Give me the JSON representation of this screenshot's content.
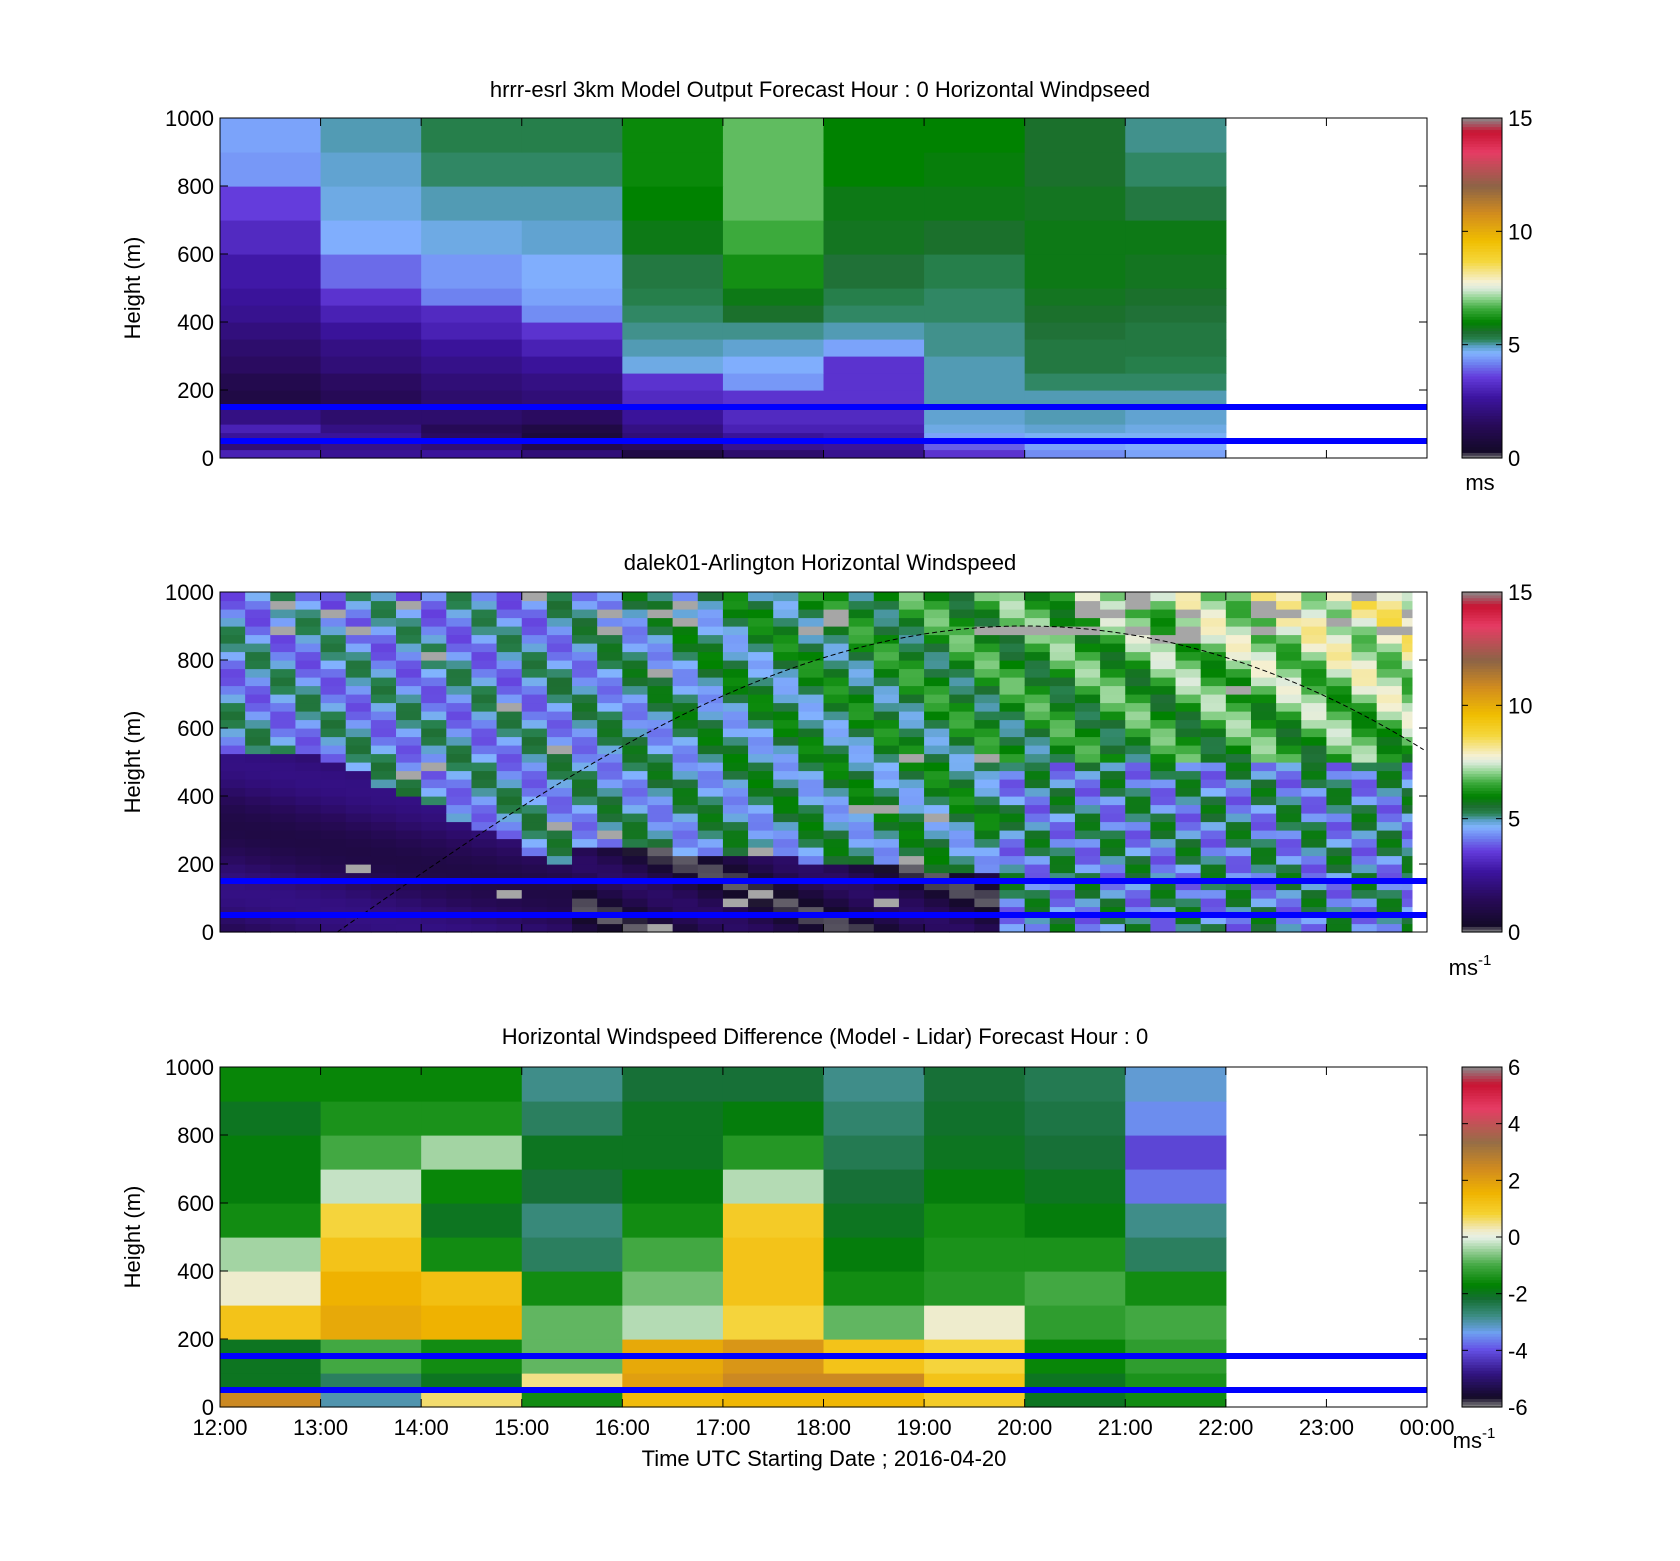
{
  "figure": {
    "xlabel": "Time UTC  Starting Date ; 2016-04-20",
    "xtick_labels": [
      "12:00",
      "13:00",
      "14:00",
      "15:00",
      "16:00",
      "17:00",
      "18:00",
      "19:00",
      "20:00",
      "21:00",
      "22:00",
      "23:00",
      "00:00"
    ]
  },
  "chart_data": [
    {
      "type": "heatmap",
      "title": "hrrr-esrl 3km Model Output   Forecast Hour : 0 Horizontal Windpseed",
      "ylabel": "Height (m)",
      "ylim": [
        0,
        1000
      ],
      "yticks": [
        0,
        200,
        400,
        600,
        800,
        1000
      ],
      "xlim": [
        "12:00",
        "00:00"
      ],
      "colorbar": {
        "min": 0,
        "max": 15,
        "ticks": [
          0,
          5,
          10,
          15
        ],
        "unit": "ms",
        "colormap": "windspeed"
      },
      "data_extent_hours": [
        12,
        22
      ],
      "time_columns": [
        "12:00",
        "13:00",
        "14:00",
        "15:00",
        "16:00",
        "17:00",
        "18:00",
        "19:00",
        "20:00",
        "21:00"
      ],
      "height_rows_m": [
        0,
        25,
        50,
        75,
        100,
        150,
        200,
        250,
        300,
        350,
        400,
        450,
        500,
        600,
        700,
        800,
        900,
        1000
      ],
      "values": [
        [
          3.0,
          2.5,
          2.6,
          2.0,
          1.0,
          1.8,
          2.4,
          3.4,
          4.3,
          4.5
        ],
        [
          2.0,
          2.3,
          2.0,
          1.2,
          1.5,
          2.4,
          2.6,
          3.9,
          4.5,
          4.6
        ],
        [
          2.6,
          2.6,
          1.6,
          0.8,
          2.0,
          2.6,
          2.8,
          4.5,
          4.7,
          4.7
        ],
        [
          3.0,
          2.2,
          1.4,
          1.0,
          2.2,
          3.0,
          3.0,
          4.8,
          4.9,
          4.8
        ],
        [
          2.2,
          1.8,
          1.8,
          1.6,
          2.6,
          3.2,
          3.2,
          4.9,
          5.0,
          4.9
        ],
        [
          1.0,
          1.4,
          1.8,
          2.0,
          3.2,
          3.4,
          3.4,
          5.0,
          5.0,
          5.0
        ],
        [
          1.2,
          1.6,
          2.0,
          2.2,
          3.4,
          4.4,
          3.4,
          5.0,
          5.2,
          5.2
        ],
        [
          1.6,
          2.0,
          2.3,
          2.6,
          4.8,
          4.6,
          3.4,
          5.0,
          5.4,
          5.3
        ],
        [
          1.8,
          2.2,
          2.6,
          3.0,
          5.0,
          4.9,
          4.5,
          5.1,
          5.4,
          5.4
        ],
        [
          2.1,
          2.6,
          3.0,
          3.4,
          5.1,
          5.1,
          5.0,
          5.1,
          5.5,
          5.4
        ],
        [
          2.4,
          3.0,
          3.2,
          4.3,
          5.2,
          5.6,
          5.2,
          5.2,
          5.6,
          5.5
        ],
        [
          2.6,
          3.4,
          4.2,
          4.5,
          5.3,
          5.8,
          5.3,
          5.2,
          5.7,
          5.6
        ],
        [
          2.8,
          4.0,
          4.4,
          4.6,
          5.4,
          6.2,
          5.5,
          5.3,
          5.8,
          5.7
        ],
        [
          3.2,
          4.6,
          4.8,
          4.9,
          5.8,
          6.6,
          5.7,
          5.6,
          5.8,
          5.8
        ],
        [
          3.6,
          4.8,
          5.0,
          5.0,
          6.0,
          6.8,
          5.8,
          5.8,
          5.7,
          5.4
        ],
        [
          4.4,
          4.9,
          5.2,
          5.2,
          6.1,
          6.8,
          6.0,
          5.9,
          5.6,
          5.2
        ],
        [
          4.5,
          5.0,
          5.3,
          5.3,
          6.1,
          6.8,
          6.0,
          6.0,
          5.6,
          5.1
        ]
      ],
      "reference_lines_m": [
        50,
        150
      ]
    },
    {
      "type": "heatmap",
      "title": "dalek01-Arlington  Horizontal Windspeed",
      "ylabel": "Height (m)",
      "ylim": [
        0,
        1000
      ],
      "yticks": [
        0,
        200,
        400,
        600,
        800,
        1000
      ],
      "xlim": [
        "12:00",
        "00:00"
      ],
      "colorbar": {
        "min": 0,
        "max": 15,
        "ticks": [
          0,
          5,
          10,
          15
        ],
        "unit": "ms-1",
        "colormap": "windspeed"
      },
      "data_extent_hours": [
        12,
        23.85
      ],
      "time_step_hours": 0.25,
      "height_step_m": 25,
      "reference_lines_m": [
        50,
        150
      ],
      "overlay_curve": {
        "style": "dashed",
        "peak_time": "20:00",
        "peak_height_m": 900,
        "start_time": "13:10",
        "end_time": "00:00",
        "end_height_m": 530
      }
    },
    {
      "type": "heatmap",
      "title": "Horizontal Windspeed Difference (Model - Lidar) Forecast Hour : 0",
      "ylabel": "Height (m)",
      "ylim": [
        0,
        1000
      ],
      "yticks": [
        0,
        200,
        400,
        600,
        800,
        1000
      ],
      "xlim": [
        "12:00",
        "00:00"
      ],
      "colorbar": {
        "min": -6,
        "max": 6,
        "ticks": [
          -6,
          -4,
          -2,
          0,
          2,
          4,
          6
        ],
        "unit": "ms-1",
        "colormap": "difference"
      },
      "data_extent_hours": [
        12,
        22
      ],
      "time_columns": [
        "12:00",
        "13:00",
        "14:00",
        "15:00",
        "16:00",
        "17:00",
        "18:00",
        "19:00",
        "20:00",
        "21:00"
      ],
      "height_rows_m": [
        0,
        50,
        100,
        200,
        300,
        400,
        500,
        600,
        700,
        800,
        900,
        1000
      ],
      "values": [
        [
          2.5,
          -3.0,
          0.6,
          -1.5,
          1.4,
          1.5,
          1.5,
          1.0,
          -2.0,
          -1.5
        ],
        [
          -2.0,
          -2.5,
          -2.0,
          0.5,
          2.0,
          2.5,
          2.5,
          1.2,
          -2.0,
          -1.4
        ],
        [
          -2.0,
          -1.0,
          -1.5,
          -0.8,
          1.8,
          2.2,
          1.2,
          0.8,
          -1.6,
          -1.2
        ],
        [
          1.2,
          1.8,
          1.6,
          -0.8,
          -0.3,
          0.8,
          -0.8,
          0.2,
          -1.2,
          -1.0
        ],
        [
          0.2,
          1.6,
          1.3,
          -1.5,
          -0.7,
          1.2,
          -1.5,
          -1.3,
          -1.0,
          -1.5
        ],
        [
          -0.4,
          1.2,
          -1.5,
          -2.5,
          -1.0,
          1.2,
          -1.8,
          -1.4,
          -1.4,
          -2.5
        ],
        [
          -1.5,
          0.8,
          -2.0,
          -2.7,
          -1.5,
          1.0,
          -2.0,
          -1.5,
          -1.8,
          -2.8
        ],
        [
          -1.8,
          -0.2,
          -1.6,
          -2.2,
          -1.8,
          -0.3,
          -2.2,
          -1.8,
          -2.0,
          -3.7
        ],
        [
          -1.8,
          -1.0,
          -0.4,
          -2.0,
          -2.0,
          -1.3,
          -2.4,
          -2.0,
          -2.2,
          -4.1
        ],
        [
          -2.0,
          -1.4,
          -1.4,
          -2.5,
          -2.0,
          -1.8,
          -2.6,
          -2.1,
          -2.3,
          -3.5
        ],
        [
          -1.6,
          -1.6,
          -1.6,
          -2.8,
          -2.2,
          -2.2,
          -2.8,
          -2.2,
          -2.4,
          -3.2
        ]
      ],
      "reference_lines_m": [
        50,
        150
      ]
    }
  ],
  "colors": {
    "reference_line": "#0000ff",
    "no_data": "#a6a6a6"
  }
}
